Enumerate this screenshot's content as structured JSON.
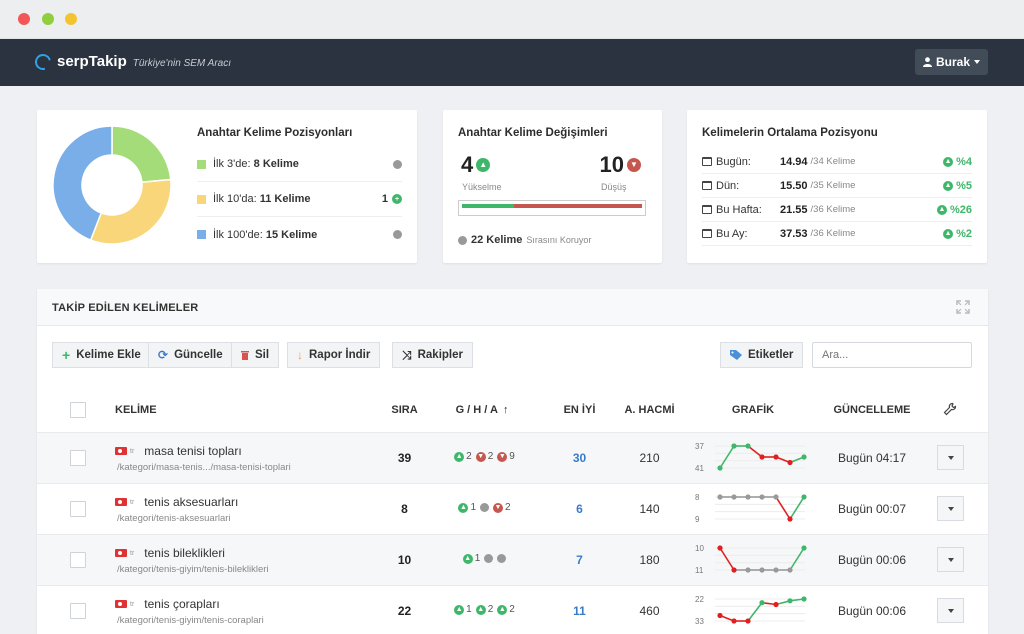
{
  "window": {
    "dots": [
      "#f25757",
      "#f4c430",
      "#6ecb46"
    ]
  },
  "nav": {
    "brand": "serpTakip",
    "tagline": "Türkiye'nin SEM Aracı",
    "user": "Burak"
  },
  "positions": {
    "title": "Anahtar Kelime Pozisyonları",
    "items": [
      {
        "prefix": "İlk 3'de:",
        "count": "8 Kelime",
        "color": "#a3dc78",
        "right": ""
      },
      {
        "prefix": "İlk 10'da:",
        "count": "11 Kelime",
        "color": "#f9d67a",
        "right": "1"
      },
      {
        "prefix": "İlk 100'de:",
        "count": "15 Kelime",
        "color": "#7aaee8",
        "right": ""
      }
    ],
    "donut": [
      8,
      11,
      15
    ]
  },
  "changes": {
    "title": "Anahtar Kelime Değişimleri",
    "up_value": "4",
    "up_label": "Yükselme",
    "down_value": "10",
    "down_label": "Düşüş",
    "split": 0.29,
    "stable_count": "22 Kelime",
    "stable_text": "Sırasını Koruyor"
  },
  "average": {
    "title": "Kelimelerin Ortalama Pozisyonu",
    "rows": [
      {
        "label": "Bugün:",
        "value": "14.94",
        "sub": "/34 Kelime",
        "pct": "%4"
      },
      {
        "label": "Dün:",
        "value": "15.50",
        "sub": "/35 Kelime",
        "pct": "%5"
      },
      {
        "label": "Bu Hafta:",
        "value": "21.55",
        "sub": "/36 Kelime",
        "pct": "%26"
      },
      {
        "label": "Bu Ay:",
        "value": "37.53",
        "sub": "/36 Kelime",
        "pct": "%2"
      }
    ]
  },
  "panel": {
    "title": "TAKİP EDİLEN KELİMELER",
    "toolbar": {
      "add": "Kelime Ekle",
      "update": "Güncelle",
      "delete": "Sil",
      "report": "Rapor İndir",
      "competitors": "Rakipler",
      "tags": "Etiketler",
      "search_placeholder": "Ara..."
    },
    "columns": {
      "keyword": "KELİME",
      "rank": "SIRA",
      "gha": "G / H / A",
      "best": "EN İYİ",
      "volume": "A. HACMİ",
      "chart": "GRAFİK",
      "updated": "GÜNCELLEME"
    },
    "rows": [
      {
        "lang": "tr",
        "keyword": "masa tenisi topları",
        "path": "/kategori/masa-tenis.../masa-tenisi-toplari",
        "rank": "39",
        "gha": [
          {
            "dir": "up",
            "v": "2"
          },
          {
            "dir": "down",
            "v": "2"
          },
          {
            "dir": "down",
            "v": "9"
          }
        ],
        "best": "30",
        "volume": "210",
        "updated": "Bugün 04:17",
        "spark": {
          "labels": [
            "37",
            "41"
          ],
          "points": [
            41,
            37,
            37,
            39,
            39,
            40,
            39
          ],
          "colors": [
            "g",
            "g",
            "r",
            "r",
            "r",
            "g"
          ]
        }
      },
      {
        "lang": "tr",
        "keyword": "tenis aksesuarları",
        "path": "/kategori/tenis-aksesuarlari",
        "rank": "8",
        "gha": [
          {
            "dir": "up",
            "v": "1"
          },
          {
            "dir": "flat",
            "v": ""
          },
          {
            "dir": "down",
            "v": "2"
          }
        ],
        "best": "6",
        "volume": "140",
        "updated": "Bugün 00:07",
        "spark": {
          "labels": [
            "8",
            "9"
          ],
          "points": [
            8,
            8,
            8,
            8,
            8,
            9,
            8
          ],
          "colors": [
            "n",
            "n",
            "n",
            "n",
            "r",
            "g"
          ]
        }
      },
      {
        "lang": "tr",
        "keyword": "tenis bileklikleri",
        "path": "/kategori/tenis-giyim/tenis-bileklikleri",
        "rank": "10",
        "gha": [
          {
            "dir": "up",
            "v": "1"
          },
          {
            "dir": "flat",
            "v": ""
          },
          {
            "dir": "flat",
            "v": ""
          }
        ],
        "best": "7",
        "volume": "180",
        "updated": "Bugün 00:06",
        "spark": {
          "labels": [
            "10",
            "11"
          ],
          "points": [
            10,
            11,
            11,
            11,
            11,
            11,
            10
          ],
          "colors": [
            "r",
            "n",
            "n",
            "n",
            "n",
            "g"
          ]
        }
      },
      {
        "lang": "tr",
        "keyword": "tenis çorapları",
        "path": "/kategori/tenis-giyim/tenis-coraplari",
        "rank": "22",
        "gha": [
          {
            "dir": "up",
            "v": "1"
          },
          {
            "dir": "up",
            "v": "2"
          },
          {
            "dir": "up",
            "v": "2"
          }
        ],
        "best": "11",
        "volume": "460",
        "updated": "Bugün 00:06",
        "spark": {
          "labels": [
            "22",
            "33"
          ],
          "points": [
            30,
            33,
            33,
            23,
            24,
            22,
            21
          ],
          "colors": [
            "r",
            "r",
            "g",
            "r",
            "g",
            "g"
          ]
        }
      }
    ]
  }
}
